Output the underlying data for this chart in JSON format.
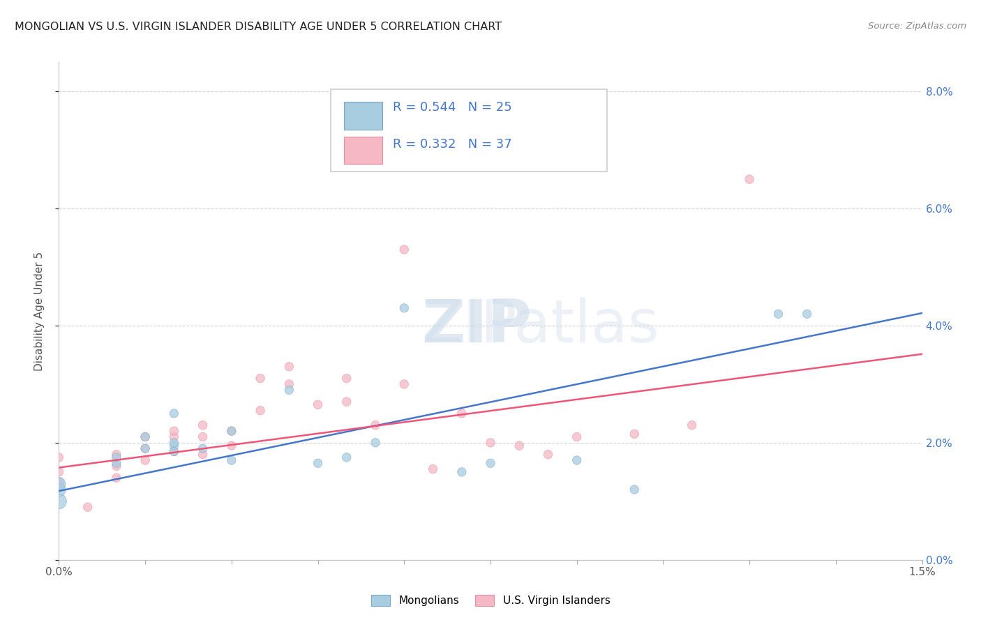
{
  "title": "MONGOLIAN VS U.S. VIRGIN ISLANDER DISABILITY AGE UNDER 5 CORRELATION CHART",
  "source": "Source: ZipAtlas.com",
  "ylabel": "Disability Age Under 5",
  "legend_blue_r": "R = 0.544",
  "legend_blue_n": "N = 25",
  "legend_pink_r": "R = 0.332",
  "legend_pink_n": "N = 37",
  "blue_label": "Mongolians",
  "pink_label": "U.S. Virgin Islanders",
  "blue_color": "#a8cce0",
  "pink_color": "#f5b8c4",
  "blue_line_color": "#4477cc",
  "pink_line_color": "#ee5577",
  "xlim": [
    0.0,
    0.015
  ],
  "ylim": [
    0.0,
    0.085
  ],
  "blue_scatter_x": [
    0.0,
    0.0,
    0.0,
    0.001,
    0.001,
    0.0015,
    0.0015,
    0.002,
    0.002,
    0.002,
    0.002,
    0.0025,
    0.003,
    0.003,
    0.004,
    0.0045,
    0.005,
    0.0055,
    0.006,
    0.007,
    0.0075,
    0.009,
    0.01,
    0.0125,
    0.013
  ],
  "blue_scatter_y": [
    0.01,
    0.012,
    0.013,
    0.0165,
    0.0175,
    0.019,
    0.021,
    0.0195,
    0.0185,
    0.02,
    0.025,
    0.019,
    0.022,
    0.017,
    0.029,
    0.0165,
    0.0175,
    0.02,
    0.043,
    0.015,
    0.0165,
    0.017,
    0.012,
    0.042,
    0.042
  ],
  "blue_sizes": [
    250,
    200,
    180,
    80,
    80,
    80,
    80,
    80,
    80,
    80,
    80,
    80,
    80,
    80,
    80,
    80,
    80,
    80,
    80,
    80,
    80,
    80,
    80,
    80,
    80
  ],
  "pink_scatter_x": [
    0.0,
    0.0,
    0.0,
    0.0005,
    0.001,
    0.001,
    0.001,
    0.0015,
    0.0015,
    0.0015,
    0.002,
    0.002,
    0.002,
    0.0025,
    0.0025,
    0.0025,
    0.003,
    0.003,
    0.0035,
    0.0035,
    0.004,
    0.004,
    0.0045,
    0.005,
    0.005,
    0.0055,
    0.006,
    0.006,
    0.0065,
    0.007,
    0.0075,
    0.008,
    0.0085,
    0.009,
    0.01,
    0.011,
    0.012
  ],
  "pink_scatter_y": [
    0.013,
    0.015,
    0.0175,
    0.009,
    0.014,
    0.016,
    0.018,
    0.017,
    0.019,
    0.021,
    0.0185,
    0.021,
    0.022,
    0.018,
    0.021,
    0.023,
    0.0195,
    0.022,
    0.0255,
    0.031,
    0.03,
    0.033,
    0.0265,
    0.027,
    0.031,
    0.023,
    0.053,
    0.03,
    0.0155,
    0.025,
    0.02,
    0.0195,
    0.018,
    0.021,
    0.0215,
    0.023,
    0.065
  ],
  "pink_sizes": [
    130,
    80,
    80,
    80,
    80,
    80,
    80,
    80,
    80,
    80,
    80,
    80,
    80,
    80,
    80,
    80,
    80,
    80,
    80,
    80,
    80,
    80,
    80,
    80,
    80,
    80,
    80,
    80,
    80,
    80,
    80,
    80,
    80,
    80,
    80,
    80,
    80
  ],
  "blue_regression": [
    0.01175,
    0.02695,
    0.04215
  ],
  "pink_regression": [
    0.01575,
    0.02545,
    0.03515
  ]
}
